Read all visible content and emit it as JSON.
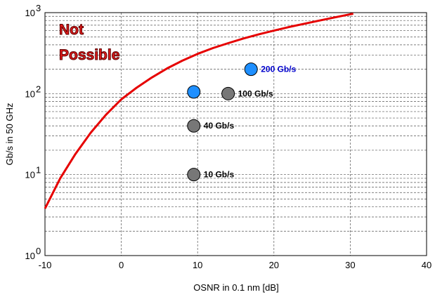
{
  "chart_data": {
    "type": "scatter",
    "title": "",
    "xlabel": "OSNR in 0.1 nm [dB]",
    "ylabel": "Gb/s in 50 GHz",
    "xlim": [
      -10,
      40
    ],
    "ylim": [
      1,
      1000
    ],
    "yscale": "log",
    "x_ticks": [
      -10,
      0,
      10,
      20,
      30,
      40
    ],
    "x_tick_labels": [
      "-10",
      "0",
      "10",
      "20",
      "30",
      "40"
    ],
    "y_ticks": [
      1,
      10,
      100,
      1000
    ],
    "y_tick_labels": [
      {
        "base": "10",
        "exp": "0"
      },
      {
        "base": "10",
        "exp": "1"
      },
      {
        "base": "10",
        "exp": "2"
      },
      {
        "base": "10",
        "exp": "3"
      }
    ],
    "grid": true,
    "annotations": [
      "Not",
      "Possible"
    ],
    "curve": {
      "color": "#e60000",
      "points": [
        [
          -10,
          3.8
        ],
        [
          -8,
          9
        ],
        [
          -6,
          18
        ],
        [
          -4,
          33
        ],
        [
          -2,
          55
        ],
        [
          0,
          85
        ],
        [
          2,
          118
        ],
        [
          4,
          158
        ],
        [
          6,
          205
        ],
        [
          8,
          255
        ],
        [
          10,
          310
        ],
        [
          12,
          365
        ],
        [
          14,
          420
        ],
        [
          16,
          480
        ],
        [
          18,
          540
        ],
        [
          20,
          600
        ],
        [
          22,
          665
        ],
        [
          24,
          730
        ],
        [
          26,
          800
        ],
        [
          28,
          875
        ],
        [
          30,
          955
        ],
        [
          30.4,
          970
        ]
      ]
    },
    "points": [
      {
        "x": 9.5,
        "y": 10,
        "label": "10 Gb/s",
        "color": "#777777",
        "label_color": "#000000"
      },
      {
        "x": 9.5,
        "y": 40,
        "label": "40 Gb/s",
        "color": "#777777",
        "label_color": "#000000"
      },
      {
        "x": 9.5,
        "y": 105,
        "label": "",
        "color": "#1e8fff",
        "label_color": "#000000"
      },
      {
        "x": 14,
        "y": 100,
        "label": "100 Gb/s",
        "color": "#777777",
        "label_color": "#000000"
      },
      {
        "x": 17,
        "y": 200,
        "label": "200 Gb/s",
        "color": "#1e8fff",
        "label_color": "#0000cc"
      }
    ]
  }
}
